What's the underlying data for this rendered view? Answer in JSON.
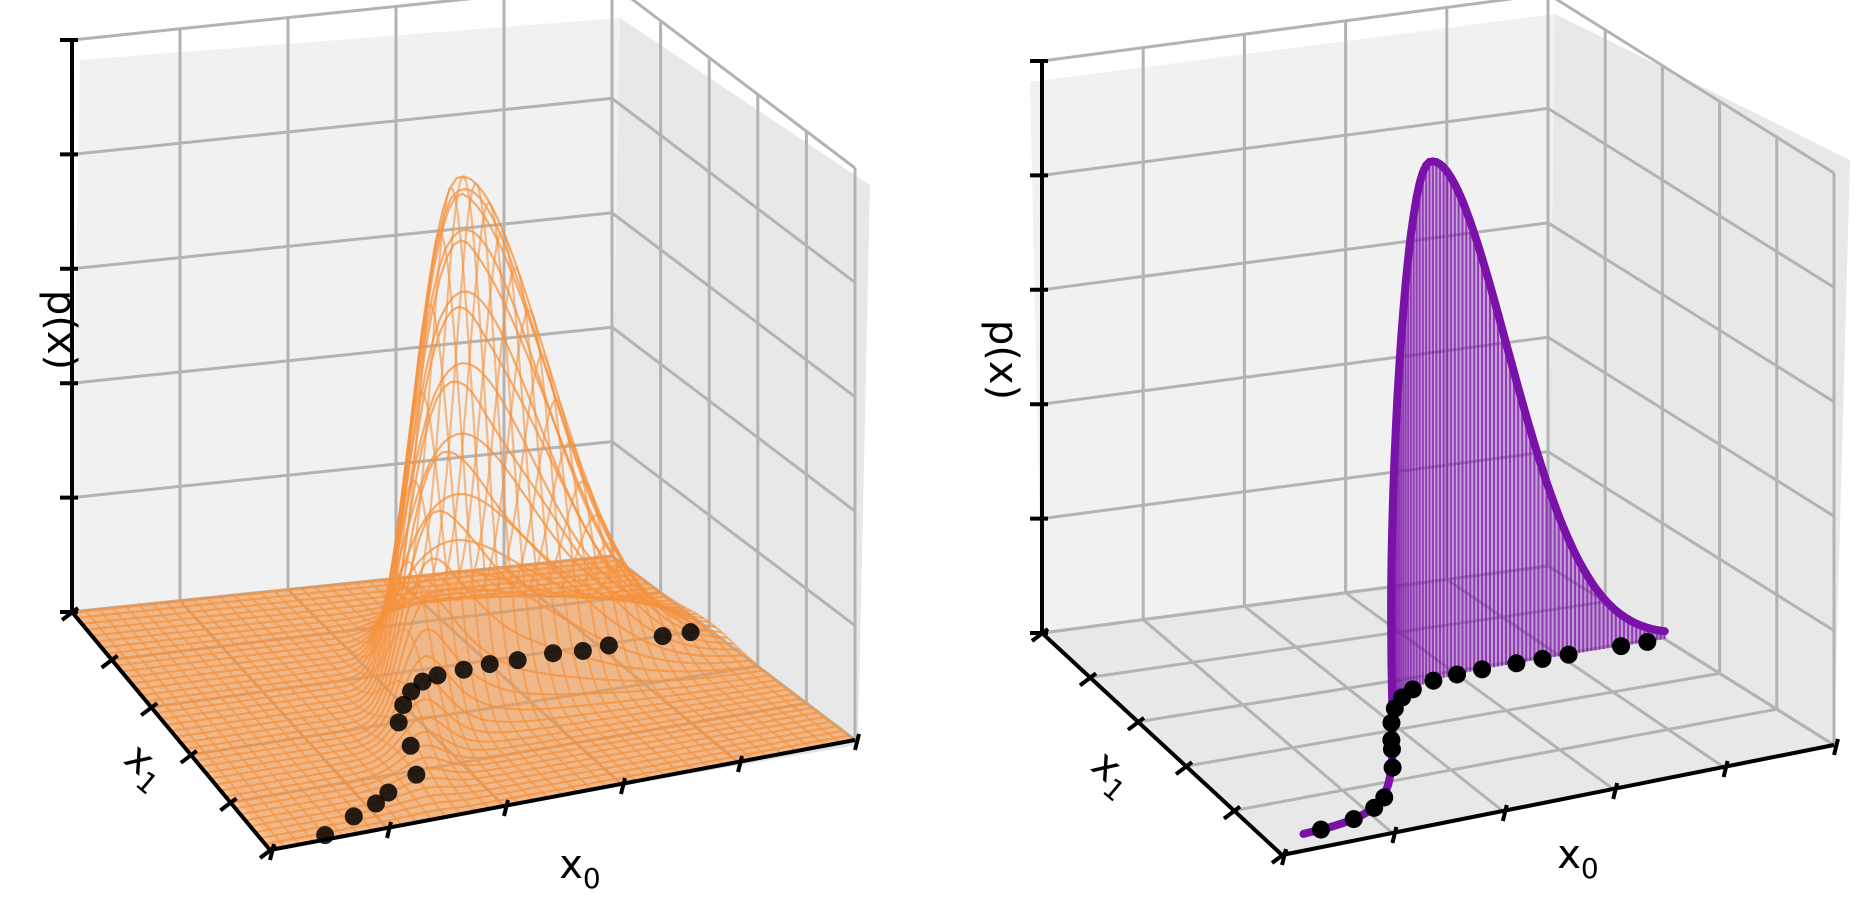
{
  "chart_data": [
    {
      "type": "surface3d",
      "xlabel": "x",
      "xlabel_sub": "0",
      "ylabel": "x",
      "ylabel_sub": "1",
      "zlabel": "p(x)",
      "ticklabels_shown": false,
      "grid": true,
      "surface_color": "#f5923e",
      "points_color": "#000000",
      "description": "Joint density p(x0, x1) with a single sharp peak; data points lie along a curved manifold on the floor",
      "points": [
        {
          "x0": -2.4,
          "x1": -2.9
        },
        {
          "x0": -2.0,
          "x1": -2.6
        },
        {
          "x0": -1.7,
          "x1": -2.4
        },
        {
          "x0": -1.5,
          "x1": -2.2
        },
        {
          "x0": -1.1,
          "x1": -1.9
        },
        {
          "x0": -0.9,
          "x1": -1.2
        },
        {
          "x0": -0.8,
          "x1": -0.6
        },
        {
          "x0": -0.6,
          "x1": -0.2
        },
        {
          "x0": -0.4,
          "x1": 0.1
        },
        {
          "x0": -0.2,
          "x1": 0.3
        },
        {
          "x0": 0.0,
          "x1": 0.4
        },
        {
          "x0": 0.3,
          "x1": 0.45
        },
        {
          "x0": 0.6,
          "x1": 0.5
        },
        {
          "x0": 0.9,
          "x1": 0.5
        },
        {
          "x0": 1.3,
          "x1": 0.55
        },
        {
          "x0": 1.6,
          "x1": 0.5
        },
        {
          "x0": 1.9,
          "x1": 0.55
        },
        {
          "x0": 2.5,
          "x1": 0.6
        },
        {
          "x0": 2.8,
          "x1": 0.6
        }
      ]
    },
    {
      "type": "curve3d",
      "xlabel": "x",
      "xlabel_sub": "0",
      "ylabel": "x",
      "ylabel_sub": "1",
      "zlabel": "p(x)",
      "ticklabels_shown": false,
      "grid": true,
      "curve_color": "#7a11a8",
      "points_color": "#000000",
      "description": "Density restricted to the data manifold, drawn as a curve with vertical stems down to the data points",
      "points": [
        {
          "x0": -2.4,
          "x1": -2.9
        },
        {
          "x0": -2.0,
          "x1": -2.6
        },
        {
          "x0": -1.7,
          "x1": -2.4
        },
        {
          "x0": -1.5,
          "x1": -2.2
        },
        {
          "x0": -1.1,
          "x1": -1.9
        },
        {
          "x0": -0.9,
          "x1": -1.2
        },
        {
          "x0": -0.8,
          "x1": -0.6
        },
        {
          "x0": -0.6,
          "x1": -0.2
        },
        {
          "x0": -0.4,
          "x1": 0.1
        },
        {
          "x0": -0.2,
          "x1": 0.3
        },
        {
          "x0": 0.0,
          "x1": 0.4
        },
        {
          "x0": 0.3,
          "x1": 0.45
        },
        {
          "x0": 0.6,
          "x1": 0.5
        },
        {
          "x0": 0.9,
          "x1": 0.5
        },
        {
          "x0": 1.3,
          "x1": 0.55
        },
        {
          "x0": 1.6,
          "x1": 0.5
        },
        {
          "x0": 1.9,
          "x1": 0.55
        },
        {
          "x0": 2.5,
          "x1": 0.6
        },
        {
          "x0": 2.8,
          "x1": 0.6
        }
      ]
    }
  ]
}
